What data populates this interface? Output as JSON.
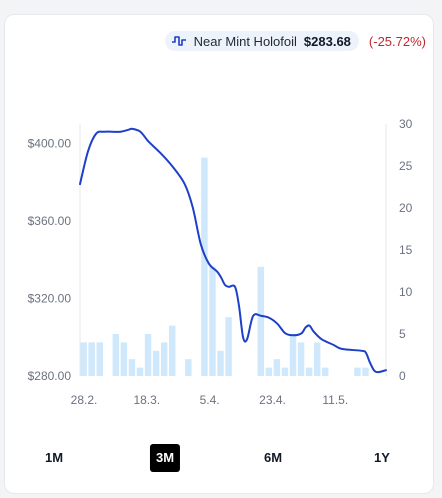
{
  "legend": {
    "series_name": "Near Mint Holofoil",
    "price": "$283.68",
    "change": "(-25.72%)",
    "icon": "price-line-icon"
  },
  "colors": {
    "line": "#1e40c8",
    "bar": "#cfe8fb",
    "change": "#c0262d",
    "active_button": "#000000"
  },
  "ranges": [
    {
      "label": "1M",
      "active": false
    },
    {
      "label": "3M",
      "active": true
    },
    {
      "label": "6M",
      "active": false
    },
    {
      "label": "1Y",
      "active": false
    }
  ],
  "chart_data": {
    "type": "line",
    "x_tick_labels": [
      "28.2.",
      "18.3.",
      "5.4.",
      "23.4.",
      "11.5."
    ],
    "y_left": {
      "ticks": [
        "$280.00",
        "$320.00",
        "$360.00",
        "$400.00"
      ],
      "ylim": [
        280,
        410
      ]
    },
    "y_right": {
      "ticks": [
        "0",
        "5",
        "10",
        "15",
        "20",
        "25",
        "30"
      ],
      "ylim": [
        0,
        30
      ]
    },
    "price_series": [
      [
        0,
        379
      ],
      [
        2,
        396
      ],
      [
        4,
        405
      ],
      [
        6,
        406
      ],
      [
        8,
        406
      ],
      [
        10,
        406
      ],
      [
        12,
        407
      ],
      [
        13,
        407.5
      ],
      [
        15,
        406
      ],
      [
        17,
        401
      ],
      [
        20,
        395
      ],
      [
        23,
        388
      ],
      [
        26,
        379
      ],
      [
        28,
        367
      ],
      [
        30,
        348
      ],
      [
        32,
        338
      ],
      [
        34,
        334
      ],
      [
        35,
        331
      ],
      [
        36,
        327
      ],
      [
        37,
        326
      ],
      [
        38.5,
        326
      ],
      [
        39.5,
        316
      ],
      [
        40.5,
        300
      ],
      [
        41.5,
        299
      ],
      [
        43,
        311
      ],
      [
        45,
        311
      ],
      [
        47,
        310
      ],
      [
        49,
        307
      ],
      [
        51,
        302
      ],
      [
        53,
        301
      ],
      [
        55,
        302
      ],
      [
        56,
        305
      ],
      [
        57,
        306
      ],
      [
        58,
        303
      ],
      [
        60,
        299
      ],
      [
        63,
        296
      ],
      [
        65,
        294
      ],
      [
        70,
        293
      ],
      [
        71,
        292
      ],
      [
        72,
        287
      ],
      [
        73,
        283
      ],
      [
        74,
        282
      ],
      [
        76,
        283
      ]
    ],
    "volume_bars": [
      [
        0,
        4
      ],
      [
        2,
        4
      ],
      [
        4,
        4
      ],
      [
        8,
        5
      ],
      [
        10,
        4
      ],
      [
        12,
        2
      ],
      [
        14,
        1
      ],
      [
        16,
        5
      ],
      [
        18,
        3
      ],
      [
        20,
        4
      ],
      [
        22,
        6
      ],
      [
        26,
        2
      ],
      [
        30,
        26
      ],
      [
        32,
        13
      ],
      [
        34,
        3
      ],
      [
        36,
        7
      ],
      [
        44,
        13
      ],
      [
        46,
        1
      ],
      [
        48,
        2
      ],
      [
        50,
        1
      ],
      [
        52,
        5
      ],
      [
        54,
        4
      ],
      [
        56,
        1
      ],
      [
        58,
        4
      ],
      [
        60,
        1
      ],
      [
        68,
        1
      ],
      [
        70,
        1
      ]
    ]
  }
}
